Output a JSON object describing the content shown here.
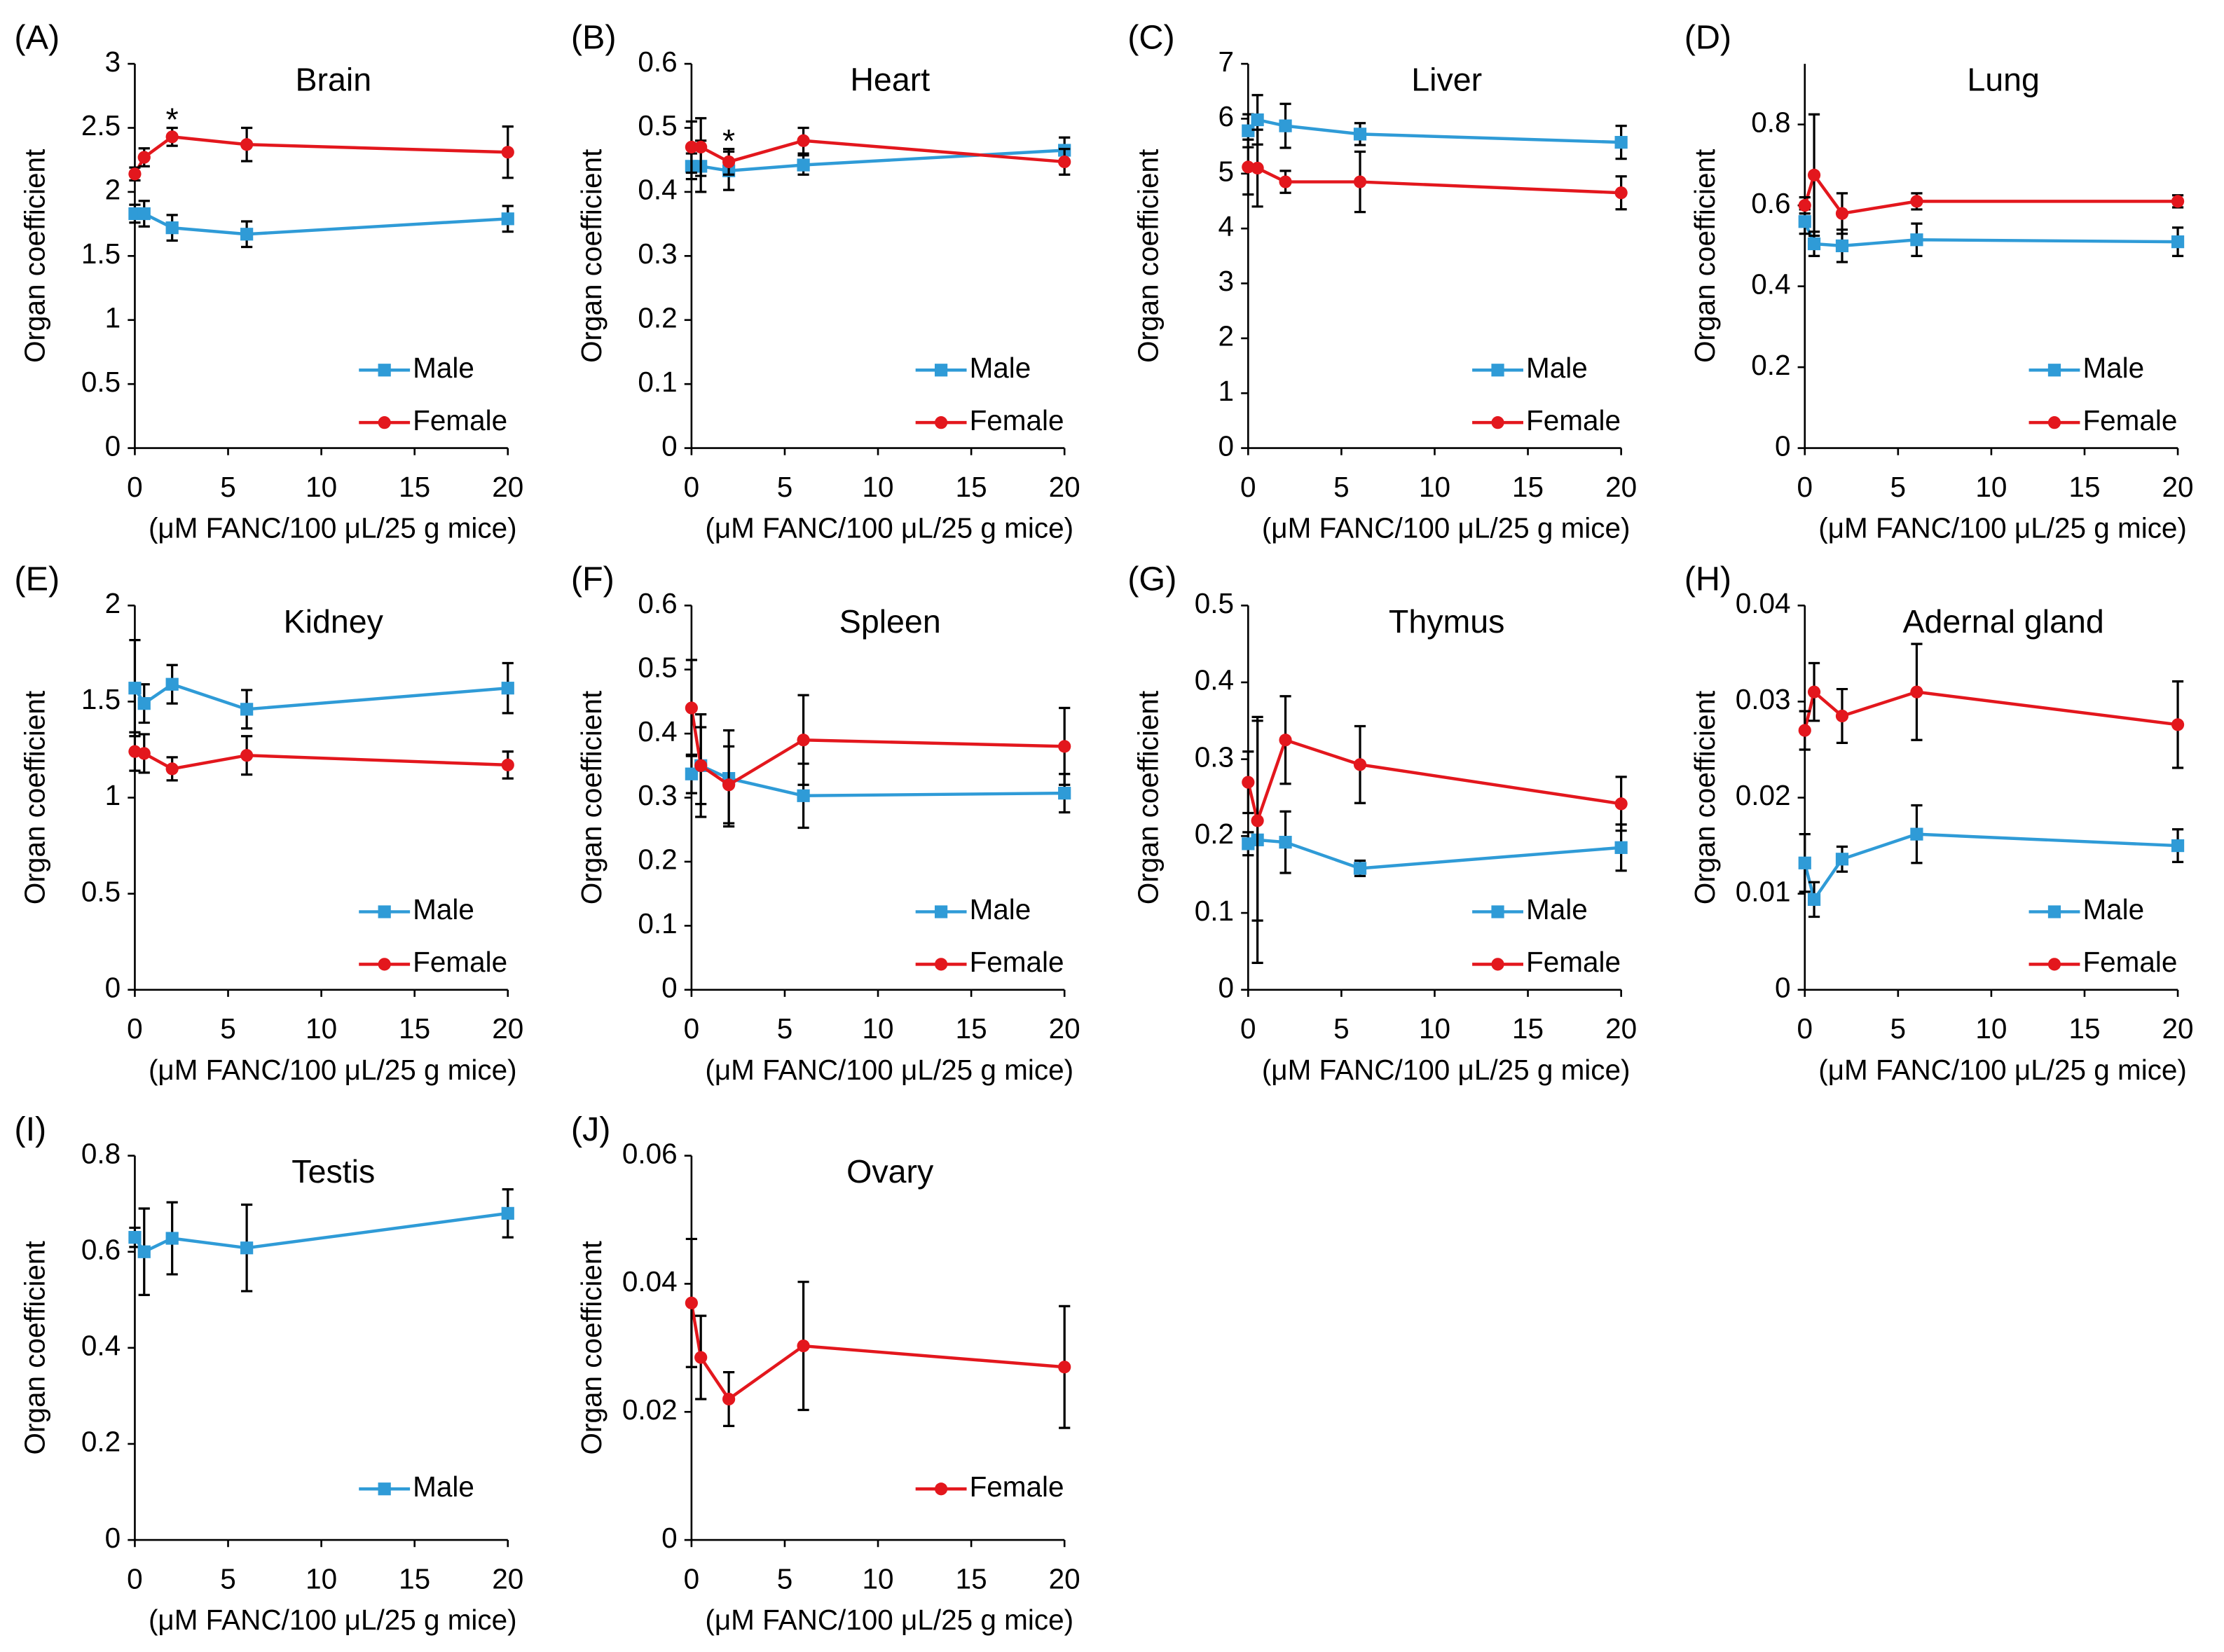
{
  "chart_data": [
    {
      "type": "line",
      "panel_label": "(A)",
      "title": "Brain",
      "ylabel": "Organ coefficient",
      "xlabel": "(μM FANC/100 μL/25 g mice)",
      "x": [
        0,
        0.5,
        2,
        6,
        20
      ],
      "xlim": [
        0,
        20
      ],
      "xticks": [
        0,
        5,
        10,
        15,
        20
      ],
      "ylim": [
        0,
        3
      ],
      "yticks": [
        0,
        0.5,
        1,
        1.5,
        2,
        2.5,
        3
      ],
      "legend": "lower right",
      "series": [
        {
          "name": "Male",
          "color": "#2f9bd7",
          "marker": "square",
          "values": [
            1.83,
            1.83,
            1.72,
            1.67,
            1.79
          ],
          "errors": [
            0.07,
            0.1,
            0.1,
            0.1,
            0.1
          ]
        },
        {
          "name": "Female",
          "color": "#e3171d",
          "marker": "circle",
          "values": [
            2.14,
            2.27,
            2.43,
            2.37,
            2.31
          ],
          "errors": [
            0.05,
            0.07,
            0.07,
            0.13,
            0.2
          ]
        }
      ],
      "annotations": [
        {
          "text": "*",
          "x": 2
        }
      ]
    },
    {
      "type": "line",
      "panel_label": "(B)",
      "title": "Heart",
      "ylabel": "Organ coefficient",
      "xlabel": "(μM FANC/100 μL/25 g mice)",
      "x": [
        0,
        0.5,
        2,
        6,
        20
      ],
      "xlim": [
        0,
        20
      ],
      "xticks": [
        0,
        5,
        10,
        15,
        20
      ],
      "ylim": [
        0,
        0.6
      ],
      "yticks": [
        0,
        0.1,
        0.2,
        0.3,
        0.4,
        0.5,
        0.6
      ],
      "legend": "lower right",
      "series": [
        {
          "name": "Male",
          "color": "#2f9bd7",
          "marker": "square",
          "values": [
            0.44,
            0.44,
            0.433,
            0.442,
            0.465
          ],
          "errors": [
            0.02,
            0.04,
            0.03,
            0.015,
            0.02
          ]
        },
        {
          "name": "Female",
          "color": "#e3171d",
          "marker": "circle",
          "values": [
            0.47,
            0.47,
            0.447,
            0.48,
            0.447
          ],
          "errors": [
            0.04,
            0.045,
            0.02,
            0.02,
            0.02
          ]
        }
      ],
      "annotations": [
        {
          "text": "*",
          "x": 2
        }
      ]
    },
    {
      "type": "line",
      "panel_label": "(C)",
      "title": "Liver",
      "ylabel": "Organ coefficient",
      "xlabel": "(μM FANC/100 μL/25 g mice)",
      "x": [
        0,
        0.5,
        2,
        6,
        20
      ],
      "xlim": [
        0,
        20
      ],
      "xticks": [
        0,
        5,
        10,
        15,
        20
      ],
      "ylim": [
        0,
        7
      ],
      "yticks": [
        0,
        1,
        2,
        3,
        4,
        5,
        6,
        7
      ],
      "legend": "lower right",
      "series": [
        {
          "name": "Male",
          "color": "#2f9bd7",
          "marker": "square",
          "values": [
            5.78,
            5.98,
            5.87,
            5.72,
            5.57
          ],
          "errors": [
            0.3,
            0.45,
            0.4,
            0.2,
            0.3
          ]
        },
        {
          "name": "Female",
          "color": "#e3171d",
          "marker": "circle",
          "values": [
            5.12,
            5.1,
            4.85,
            4.85,
            4.65
          ],
          "errors": [
            0.5,
            0.7,
            0.2,
            0.55,
            0.3
          ]
        }
      ]
    },
    {
      "type": "line",
      "panel_label": "(D)",
      "title": "Lung",
      "ylabel": "Organ coefficient",
      "xlabel": "(μM FANC/100 μL/25 g mice)",
      "x": [
        0,
        0.5,
        2,
        6,
        20
      ],
      "xlim": [
        0,
        20
      ],
      "xticks": [
        0,
        5,
        10,
        15,
        20
      ],
      "ylim": [
        0,
        0.95
      ],
      "yticks": [
        0,
        0.2,
        0.4,
        0.6,
        0.8
      ],
      "legend": "lower right",
      "series": [
        {
          "name": "Male",
          "color": "#2f9bd7",
          "marker": "square",
          "values": [
            0.56,
            0.505,
            0.5,
            0.515,
            0.51
          ],
          "errors": [
            0.03,
            0.03,
            0.04,
            0.04,
            0.035
          ]
        },
        {
          "name": "Female",
          "color": "#e3171d",
          "marker": "circle",
          "values": [
            0.6,
            0.675,
            0.58,
            0.61,
            0.61
          ],
          "errors": [
            0.02,
            0.15,
            0.05,
            0.02,
            0.015
          ]
        }
      ]
    },
    {
      "type": "line",
      "panel_label": "(E)",
      "title": "Kidney",
      "ylabel": "Organ coefficient",
      "xlabel": "(μM FANC/100 μL/25 g mice)",
      "x": [
        0,
        0.5,
        2,
        6,
        20
      ],
      "xlim": [
        0,
        20
      ],
      "xticks": [
        0,
        5,
        10,
        15,
        20
      ],
      "ylim": [
        0,
        2
      ],
      "yticks": [
        0,
        0.5,
        1,
        1.5,
        2
      ],
      "legend": "lower right",
      "series": [
        {
          "name": "Male",
          "color": "#2f9bd7",
          "marker": "square",
          "values": [
            1.57,
            1.49,
            1.59,
            1.46,
            1.57
          ],
          "errors": [
            0.25,
            0.1,
            0.1,
            0.1,
            0.13
          ]
        },
        {
          "name": "Female",
          "color": "#e3171d",
          "marker": "circle",
          "values": [
            1.24,
            1.23,
            1.15,
            1.22,
            1.17
          ],
          "errors": [
            0.1,
            0.1,
            0.06,
            0.1,
            0.07
          ]
        }
      ]
    },
    {
      "type": "line",
      "panel_label": "(F)",
      "title": "Spleen",
      "ylabel": "Organ coefficient",
      "xlabel": "(μM FANC/100 μL/25 g mice)",
      "x": [
        0,
        0.5,
        2,
        6,
        20
      ],
      "xlim": [
        0,
        20
      ],
      "xticks": [
        0,
        5,
        10,
        15,
        20
      ],
      "ylim": [
        0,
        0.6
      ],
      "yticks": [
        0,
        0.1,
        0.2,
        0.3,
        0.4,
        0.5,
        0.6
      ],
      "legend": "lower right",
      "series": [
        {
          "name": "Male",
          "color": "#2f9bd7",
          "marker": "square",
          "values": [
            0.337,
            0.35,
            0.33,
            0.303,
            0.307
          ],
          "errors": [
            0.03,
            0.08,
            0.075,
            0.05,
            0.03
          ]
        },
        {
          "name": "Female",
          "color": "#e3171d",
          "marker": "circle",
          "values": [
            0.44,
            0.35,
            0.32,
            0.39,
            0.38
          ],
          "errors": [
            0.075,
            0.06,
            0.06,
            0.07,
            0.06
          ]
        }
      ]
    },
    {
      "type": "line",
      "panel_label": "(G)",
      "title": "Thymus",
      "ylabel": "Organ coefficient",
      "xlabel": "(μM FANC/100 μL/25 g mice)",
      "x": [
        0,
        0.5,
        2,
        6,
        20
      ],
      "xlim": [
        0,
        20
      ],
      "xticks": [
        0,
        5,
        10,
        15,
        20
      ],
      "ylim": [
        0,
        0.5
      ],
      "yticks": [
        0,
        0.1,
        0.2,
        0.3,
        0.4,
        0.5
      ],
      "legend": "lower right",
      "series": [
        {
          "name": "Male",
          "color": "#2f9bd7",
          "marker": "square",
          "values": [
            0.19,
            0.195,
            0.192,
            0.158,
            0.185
          ],
          "errors": [
            0.015,
            0.16,
            0.04,
            0.01,
            0.03
          ]
        },
        {
          "name": "Female",
          "color": "#e3171d",
          "marker": "circle",
          "values": [
            0.27,
            0.22,
            0.325,
            0.293,
            0.242
          ],
          "errors": [
            0.04,
            0.13,
            0.057,
            0.05,
            0.035
          ]
        }
      ]
    },
    {
      "type": "line",
      "panel_label": "(H)",
      "title": "Adernal  gland",
      "ylabel": "Organ coefficient",
      "xlabel": "(μM FANC/100 μL/25 g mice)",
      "x": [
        0,
        0.5,
        2,
        6,
        20
      ],
      "xlim": [
        0,
        20
      ],
      "xticks": [
        0,
        5,
        10,
        15,
        20
      ],
      "ylim": [
        0,
        0.04
      ],
      "yticks": [
        0,
        0.01,
        0.02,
        0.03,
        0.04
      ],
      "legend": "lower right",
      "series": [
        {
          "name": "Male",
          "color": "#2f9bd7",
          "marker": "square",
          "values": [
            0.0132,
            0.0094,
            0.0136,
            0.0162,
            0.015
          ],
          "errors": [
            0.003,
            0.0018,
            0.0013,
            0.003,
            0.0017
          ]
        },
        {
          "name": "Female",
          "color": "#e3171d",
          "marker": "circle",
          "values": [
            0.027,
            0.031,
            0.0285,
            0.031,
            0.0276
          ],
          "errors": [
            0.002,
            0.003,
            0.0028,
            0.005,
            0.0045
          ]
        }
      ]
    },
    {
      "type": "line",
      "panel_label": "(I)",
      "title": "Testis",
      "ylabel": "Organ coefficient",
      "xlabel": "(μM FANC/100 μL/25 g mice)",
      "x": [
        0,
        0.5,
        2,
        6,
        20
      ],
      "xlim": [
        0,
        20
      ],
      "xticks": [
        0,
        5,
        10,
        15,
        20
      ],
      "ylim": [
        0,
        0.8
      ],
      "yticks": [
        0,
        0.2,
        0.4,
        0.6,
        0.8
      ],
      "legend": "lower right",
      "series": [
        {
          "name": "Male",
          "color": "#2f9bd7",
          "marker": "square",
          "values": [
            0.63,
            0.6,
            0.628,
            0.608,
            0.68
          ],
          "errors": [
            0.02,
            0.09,
            0.075,
            0.09,
            0.05
          ]
        }
      ]
    },
    {
      "type": "line",
      "panel_label": "(J)",
      "title": "Ovary",
      "ylabel": "Organ coefficient",
      "xlabel": "(μM FANC/100 μL/25 g mice)",
      "x": [
        0,
        0.5,
        2,
        6,
        20
      ],
      "xlim": [
        0,
        20
      ],
      "xticks": [
        0,
        5,
        10,
        15,
        20
      ],
      "ylim": [
        0,
        0.06
      ],
      "yticks": [
        0,
        0.02,
        0.04,
        0.06
      ],
      "legend": "lower right",
      "series": [
        {
          "name": "Female",
          "color": "#e3171d",
          "marker": "circle",
          "values": [
            0.037,
            0.0285,
            0.022,
            0.0303,
            0.027
          ],
          "errors": [
            0.01,
            0.0065,
            0.0042,
            0.01,
            0.0095
          ]
        }
      ]
    }
  ]
}
